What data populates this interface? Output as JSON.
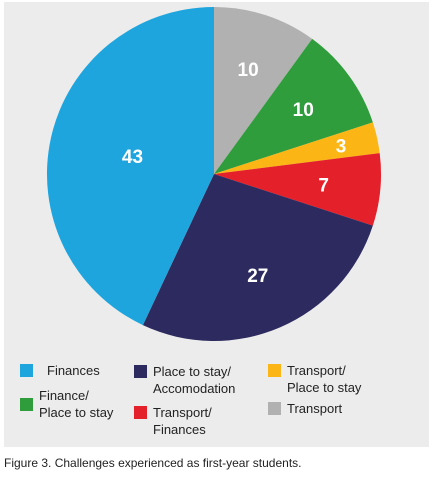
{
  "chart_data": {
    "type": "pie",
    "title": "",
    "slices": [
      {
        "label": "Transport",
        "value": 10,
        "display": "10",
        "color": "#b1b1b1"
      },
      {
        "label": "Finance/\nPlace to stay",
        "value": 10,
        "display": "10",
        "color": "#2f9d3c"
      },
      {
        "label": "Transport/\nPlace to stay",
        "value": 3,
        "display": "3",
        "color": "#fbb514"
      },
      {
        "label": "Transport/\nFinances",
        "value": 7,
        "display": "7",
        "color": "#e4202a"
      },
      {
        "label": "Place to stay/\nAccomodation",
        "value": 27,
        "display": "27",
        "color": "#2c2a5e"
      },
      {
        "label": "Finances",
        "value": 43,
        "display": "43",
        "color": "#1fa5dd"
      }
    ],
    "legend_placement": "bottom"
  },
  "caption": "Figure 3. Challenges experienced as first-year students."
}
